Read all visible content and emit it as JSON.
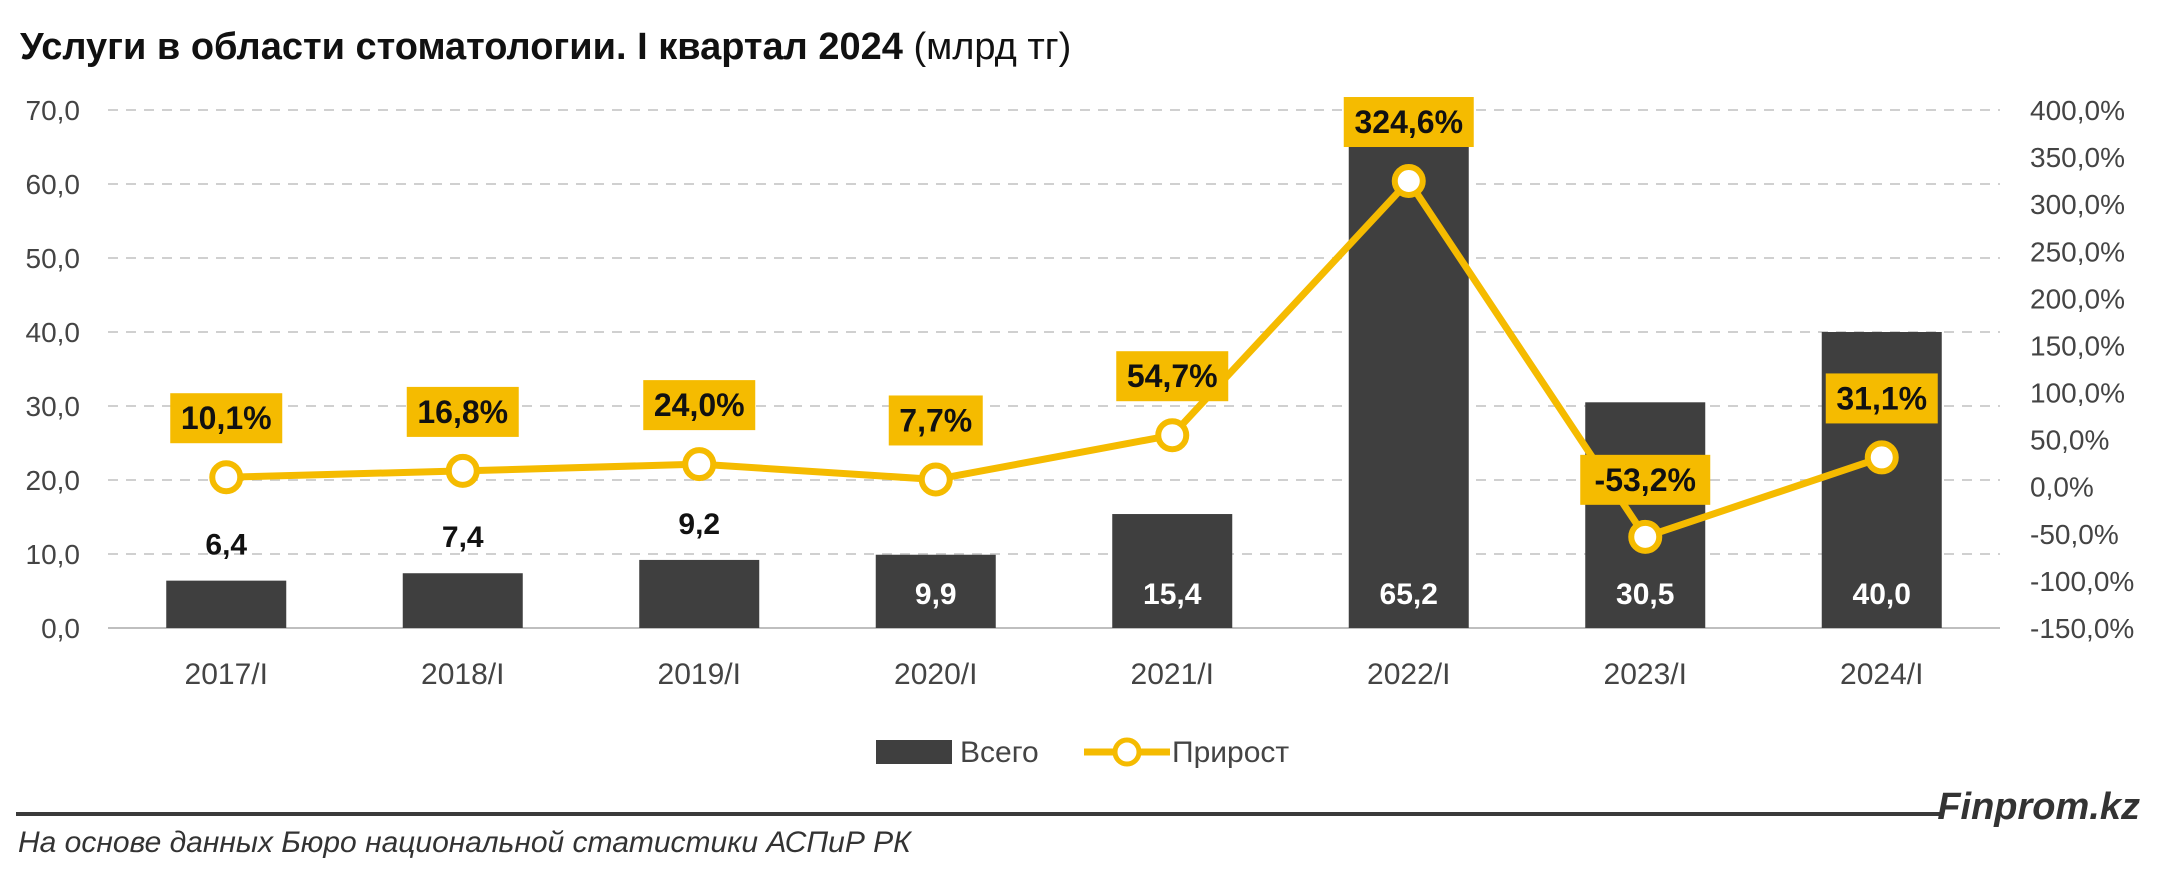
{
  "title_bold": "Услуги в области стоматологии. I квартал 2024",
  "title_unit": "(млрд тг)",
  "brand": "Finprom.kz",
  "source": "На основе данных Бюро национальной статистики АСПиР РК",
  "colors": {
    "bar": "#3f3f3f",
    "line": "#f5bb00",
    "grid": "#d0d0d0"
  },
  "chart_data": {
    "type": "bar",
    "categories": [
      "2017/I",
      "2018/I",
      "2019/I",
      "2020/I",
      "2021/I",
      "2022/I",
      "2023/I",
      "2024/I"
    ],
    "series": [
      {
        "name": "Всего",
        "type": "bar",
        "axis": "left",
        "values": [
          6.4,
          7.4,
          9.2,
          9.9,
          15.4,
          65.2,
          30.5,
          40.0
        ],
        "labels": [
          "6,4",
          "7,4",
          "9,2",
          "9,9",
          "15,4",
          "65,2",
          "30,5",
          "40,0"
        ]
      },
      {
        "name": "Прирост",
        "type": "line",
        "axis": "right",
        "values": [
          10.1,
          16.8,
          24.0,
          7.7,
          54.7,
          324.6,
          -53.2,
          31.1
        ],
        "labels": [
          "10,1%",
          "16,8%",
          "24,0%",
          "7,7%",
          "54,7%",
          "324,6%",
          "-53,2%",
          "31,1%"
        ]
      }
    ],
    "y_left": {
      "min": 0,
      "max": 70,
      "step": 10,
      "tick_labels": [
        "0,0",
        "10,0",
        "20,0",
        "30,0",
        "40,0",
        "50,0",
        "60,0",
        "70,0"
      ]
    },
    "y_right": {
      "min": -150,
      "max": 400,
      "step": 50,
      "tick_labels": [
        "-150,0%",
        "-100,0%",
        "-50,0%",
        "0,0%",
        "50,0%",
        "100,0%",
        "150,0%",
        "200,0%",
        "250,0%",
        "300,0%",
        "350,0%",
        "400,0%"
      ]
    },
    "grid": true,
    "legend_position": "bottom"
  }
}
